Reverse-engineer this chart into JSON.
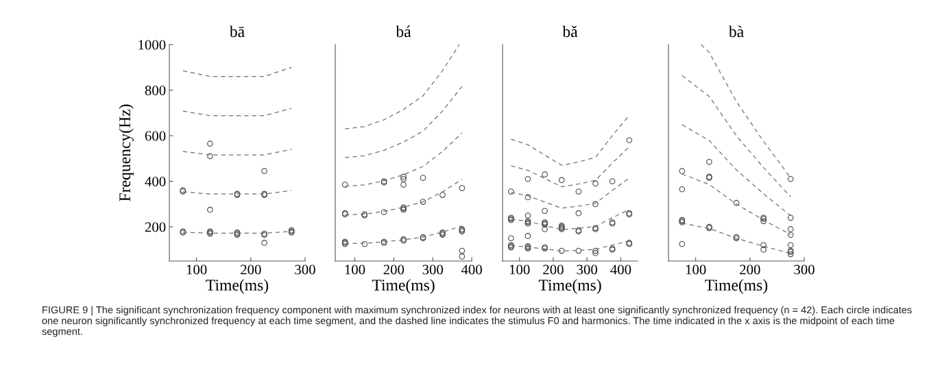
{
  "chart_data": [
    {
      "type": "scatter",
      "title": "bā",
      "xlabel": "Time(ms)",
      "ylabel": "Frequency(Hz)",
      "xlim": [
        50,
        300
      ],
      "xticks": [
        100,
        200,
        300
      ],
      "ylim": [
        50,
        1000
      ],
      "yticks": [
        200,
        400,
        600,
        800,
        1000
      ],
      "grid": false,
      "legend": false,
      "annotations": [
        "FIGURE 9 | The significant synchronization frequency component with maximum synchronized index for neurons with at least one significantly synchronized frequency (n = 42). Each circle indicates one neuron significantly synchronized frequency at each time segment, and the dashed line indicates the stimulus F0 and harmonics. The time indicated in the x axis is the midpoint of each time segment."
      ],
      "series": [
        {
          "type": "line",
          "line_style": "dashed",
          "color": "#6e6e6e",
          "x": [
            75,
            125,
            175,
            225,
            275
          ],
          "values": [
            177,
            172,
            172,
            172,
            180
          ]
        },
        {
          "type": "line",
          "line_style": "dashed",
          "color": "#6e6e6e",
          "x": [
            75,
            125,
            175,
            225,
            275
          ],
          "values": [
            354,
            344,
            344,
            344,
            360
          ]
        },
        {
          "type": "line",
          "line_style": "dashed",
          "color": "#6e6e6e",
          "x": [
            75,
            125,
            175,
            225,
            275
          ],
          "values": [
            531,
            516,
            516,
            516,
            540
          ]
        },
        {
          "type": "line",
          "line_style": "dashed",
          "color": "#6e6e6e",
          "x": [
            75,
            125,
            175,
            225,
            275
          ],
          "values": [
            708,
            688,
            688,
            688,
            720
          ]
        },
        {
          "type": "line",
          "line_style": "dashed",
          "color": "#6e6e6e",
          "x": [
            75,
            125,
            175,
            225,
            275
          ],
          "values": [
            885,
            860,
            860,
            860,
            900
          ]
        },
        {
          "type": "scatter",
          "marker": "circle",
          "color": "#4d4d4d",
          "x": [
            75,
            75,
            75,
            75,
            125,
            125,
            125,
            125,
            125,
            125,
            175,
            175,
            175,
            175,
            175,
            225,
            225,
            225,
            225,
            225,
            225,
            275,
            275,
            275
          ],
          "values": [
            360,
            355,
            180,
            175,
            565,
            510,
            275,
            180,
            175,
            170,
            345,
            340,
            175,
            170,
            165,
            445,
            345,
            340,
            170,
            165,
            130,
            185,
            180,
            175
          ]
        }
      ]
    },
    {
      "type": "scatter",
      "title": "bá",
      "xlabel": "Time(ms)",
      "xlim": [
        50,
        400
      ],
      "xticks": [
        100,
        200,
        300,
        400
      ],
      "ylim": [
        50,
        1000
      ],
      "tick_labels": "x",
      "grid": false,
      "legend": false,
      "series": [
        {
          "type": "line",
          "line_style": "dashed",
          "color": "#6e6e6e",
          "x": [
            75,
            125,
            175,
            225,
            275,
            325,
            375
          ],
          "values": [
            126,
            128,
            134,
            143,
            155,
            177,
            204
          ]
        },
        {
          "type": "line",
          "line_style": "dashed",
          "color": "#6e6e6e",
          "x": [
            75,
            125,
            175,
            225,
            275,
            325,
            375
          ],
          "values": [
            252,
            256,
            268,
            286,
            310,
            354,
            408
          ]
        },
        {
          "type": "line",
          "line_style": "dashed",
          "color": "#6e6e6e",
          "x": [
            75,
            125,
            175,
            225,
            275,
            325,
            375
          ],
          "values": [
            378,
            384,
            402,
            429,
            465,
            531,
            612
          ]
        },
        {
          "type": "line",
          "line_style": "dashed",
          "color": "#6e6e6e",
          "x": [
            75,
            125,
            175,
            225,
            275,
            325,
            375
          ],
          "values": [
            504,
            512,
            536,
            572,
            620,
            708,
            816
          ]
        },
        {
          "type": "line",
          "line_style": "dashed",
          "color": "#6e6e6e",
          "x": [
            75,
            125,
            175,
            225,
            275,
            325,
            368
          ],
          "values": [
            630,
            640,
            670,
            715,
            775,
            885,
            1000
          ]
        },
        {
          "type": "scatter",
          "marker": "circle",
          "color": "#4d4d4d",
          "x": [
            75,
            75,
            75,
            75,
            75,
            75,
            125,
            125,
            125,
            175,
            175,
            175,
            175,
            175,
            225,
            225,
            225,
            225,
            225,
            225,
            225,
            225,
            275,
            275,
            275,
            275,
            325,
            325,
            325,
            325,
            375,
            375,
            375,
            375,
            375,
            375
          ],
          "values": [
            385,
            260,
            255,
            135,
            130,
            125,
            255,
            250,
            125,
            400,
            395,
            265,
            135,
            130,
            420,
            410,
            385,
            285,
            280,
            275,
            145,
            140,
            415,
            310,
            155,
            150,
            340,
            175,
            170,
            165,
            370,
            190,
            185,
            180,
            95,
            70
          ]
        }
      ]
    },
    {
      "type": "scatter",
      "title": "bǎ",
      "xlabel": "Time(ms)",
      "xlim": [
        50,
        450
      ],
      "xticks": [
        100,
        200,
        300,
        400
      ],
      "ylim": [
        50,
        1000
      ],
      "tick_labels": "x",
      "grid": false,
      "legend": false,
      "series": [
        {
          "type": "line",
          "line_style": "dashed",
          "color": "#6e6e6e",
          "x": [
            75,
            125,
            175,
            225,
            275,
            325,
            375,
            425
          ],
          "values": [
            117,
            112,
            103,
            94,
            97,
            101,
            120,
            138
          ]
        },
        {
          "type": "line",
          "line_style": "dashed",
          "color": "#6e6e6e",
          "x": [
            75,
            125,
            175,
            225,
            275,
            325,
            375,
            425
          ],
          "values": [
            234,
            224,
            206,
            188,
            194,
            202,
            240,
            276
          ]
        },
        {
          "type": "line",
          "line_style": "dashed",
          "color": "#6e6e6e",
          "x": [
            75,
            125,
            175,
            225,
            275,
            325,
            375,
            425
          ],
          "values": [
            351,
            336,
            309,
            282,
            291,
            303,
            360,
            414
          ]
        },
        {
          "type": "line",
          "line_style": "dashed",
          "color": "#6e6e6e",
          "x": [
            75,
            125,
            175,
            225,
            275,
            325,
            375,
            425
          ],
          "values": [
            468,
            448,
            412,
            376,
            388,
            404,
            480,
            552
          ]
        },
        {
          "type": "line",
          "line_style": "dashed",
          "color": "#6e6e6e",
          "x": [
            75,
            125,
            175,
            225,
            275,
            325,
            375,
            425
          ],
          "values": [
            585,
            560,
            515,
            470,
            485,
            505,
            600,
            690
          ]
        },
        {
          "type": "scatter",
          "marker": "circle",
          "color": "#4d4d4d",
          "x": [
            75,
            75,
            75,
            75,
            75,
            75,
            75,
            75,
            125,
            125,
            125,
            125,
            125,
            125,
            125,
            125,
            125,
            125,
            175,
            175,
            175,
            175,
            175,
            175,
            175,
            175,
            225,
            225,
            225,
            225,
            225,
            225,
            275,
            275,
            275,
            275,
            275,
            325,
            325,
            325,
            325,
            325,
            325,
            375,
            375,
            375,
            375,
            375,
            425,
            425,
            425,
            425,
            425
          ],
          "values": [
            355,
            240,
            235,
            230,
            150,
            120,
            115,
            110,
            410,
            330,
            250,
            225,
            220,
            215,
            160,
            115,
            110,
            105,
            430,
            270,
            220,
            215,
            210,
            190,
            110,
            105,
            405,
            205,
            200,
            195,
            190,
            95,
            355,
            260,
            185,
            180,
            95,
            390,
            300,
            195,
            190,
            95,
            85,
            400,
            220,
            215,
            105,
            100,
            580,
            260,
            255,
            130,
            125
          ]
        }
      ]
    },
    {
      "type": "scatter",
      "title": "bà",
      "xlabel": "Time(ms)",
      "xlim": [
        50,
        300
      ],
      "xticks": [
        100,
        200,
        300
      ],
      "ylim": [
        50,
        1000
      ],
      "tick_labels": "x",
      "grid": false,
      "legend": false,
      "series": [
        {
          "type": "line",
          "line_style": "dashed",
          "color": "#6e6e6e",
          "x": [
            75,
            125,
            175,
            225,
            275
          ],
          "values": [
            216,
            193,
            150,
            115,
            83
          ]
        },
        {
          "type": "line",
          "line_style": "dashed",
          "color": "#6e6e6e",
          "x": [
            75,
            125,
            175,
            225,
            275
          ],
          "values": [
            432,
            386,
            300,
            230,
            166
          ]
        },
        {
          "type": "line",
          "line_style": "dashed",
          "color": "#6e6e6e",
          "x": [
            75,
            125,
            175,
            225,
            275
          ],
          "values": [
            648,
            579,
            450,
            345,
            249
          ]
        },
        {
          "type": "line",
          "line_style": "dashed",
          "color": "#6e6e6e",
          "x": [
            75,
            125,
            175,
            225,
            275
          ],
          "values": [
            864,
            772,
            600,
            460,
            332
          ]
        },
        {
          "type": "line",
          "line_style": "dashed",
          "color": "#6e6e6e",
          "x": [
            110,
            125,
            175,
            225,
            275
          ],
          "values": [
            1000,
            965,
            750,
            575,
            415
          ]
        },
        {
          "type": "scatter",
          "marker": "circle",
          "color": "#4d4d4d",
          "x": [
            75,
            75,
            75,
            75,
            75,
            75,
            125,
            125,
            125,
            125,
            125,
            175,
            175,
            175,
            225,
            225,
            225,
            225,
            225,
            275,
            275,
            275,
            275,
            275,
            275,
            275,
            275
          ],
          "values": [
            445,
            365,
            230,
            225,
            220,
            125,
            485,
            420,
            415,
            200,
            195,
            305,
            155,
            150,
            240,
            235,
            225,
            120,
            100,
            410,
            240,
            190,
            165,
            120,
            95,
            90,
            80
          ]
        }
      ]
    }
  ]
}
